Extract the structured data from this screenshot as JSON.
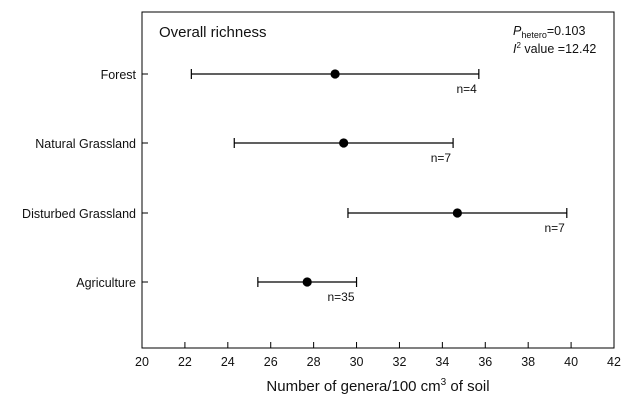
{
  "chart_data": {
    "type": "forest",
    "title": "Overall richness",
    "stats": {
      "p_symbol": "P",
      "p_subscript": "hetero",
      "p_value": "=0.103",
      "i_symbol": "I",
      "i_superscript": "2",
      "i_text": " value =12.42"
    },
    "xlabel": {
      "before": "Number of genera/100 cm",
      "superscript": "3",
      "after": " of soil"
    },
    "xlim": [
      20,
      42
    ],
    "x_ticks": [
      "20",
      "22",
      "24",
      "26",
      "28",
      "30",
      "32",
      "34",
      "36",
      "38",
      "40",
      "42"
    ],
    "categories": [
      {
        "label": "Forest",
        "mean": 29.0,
        "low": 22.3,
        "high": 35.7,
        "n_label": "n=4"
      },
      {
        "label": "Natural Grassland",
        "mean": 29.4,
        "low": 24.3,
        "high": 34.5,
        "n_label": "n=7"
      },
      {
        "label": "Disturbed Grassland",
        "mean": 34.7,
        "low": 29.6,
        "high": 39.8,
        "n_label": "n=7"
      },
      {
        "label": "Agriculture",
        "mean": 27.7,
        "low": 25.4,
        "high": 30.0,
        "n_label": "n=35"
      }
    ],
    "grid": false,
    "colors": {
      "marker": "#000000",
      "axis": "#000000"
    }
  }
}
